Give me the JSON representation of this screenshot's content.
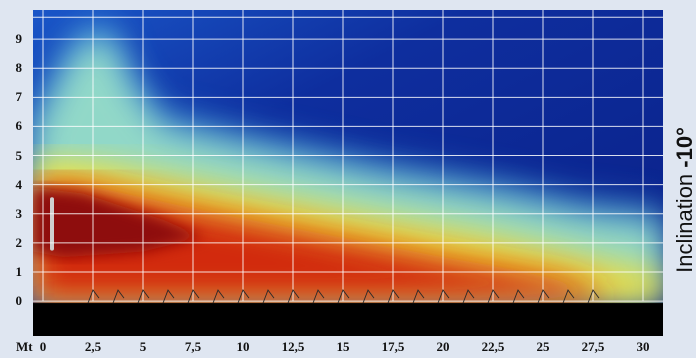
{
  "chart_data": {
    "type": "heatmap",
    "xlabel": "Mt",
    "x_ticks": [
      "0",
      "2,5",
      "5",
      "7,5",
      "10",
      "12,5",
      "15",
      "17,5",
      "20",
      "22,5",
      "25",
      "27,5",
      "30"
    ],
    "y_ticks": [
      "0",
      "1",
      "2",
      "3",
      "4",
      "5",
      "6",
      "7",
      "8",
      "9"
    ],
    "xlim": [
      -0.5,
      31
    ],
    "ylim": [
      -1.2,
      10
    ],
    "grid": true,
    "colorscale": [
      "#0a1f86",
      "#1a56c8",
      "#3fa6e8",
      "#8ee0e0",
      "#d8f070",
      "#f4e030",
      "#f08a1a",
      "#d8280e",
      "#8e0c08"
    ],
    "regions": [
      {
        "name": "high",
        "color": "#d22a10",
        "outline": [
          [
            -0.5,
            1.5
          ],
          [
            -0.5,
            4.1
          ],
          [
            2,
            4.0
          ],
          [
            8,
            3.1
          ],
          [
            14,
            2.3
          ],
          [
            20,
            1.5
          ],
          [
            26,
            0.8
          ],
          [
            28,
            0.3
          ],
          [
            28,
            0
          ],
          [
            -0.5,
            0
          ]
        ]
      },
      {
        "name": "peak",
        "color": "#8e0c08",
        "outline": [
          [
            -0.5,
            1.7
          ],
          [
            -0.5,
            3.9
          ],
          [
            2,
            3.7
          ],
          [
            6,
            2.8
          ],
          [
            8,
            2.2
          ],
          [
            5,
            1.7
          ],
          [
            1,
            1.5
          ]
        ]
      },
      {
        "name": "moderate",
        "color": "#f3e23a",
        "outline": [
          [
            -0.5,
            0
          ],
          [
            -0.5,
            4.9
          ],
          [
            3,
            4.7
          ],
          [
            9,
            3.9
          ],
          [
            16,
            3.0
          ],
          [
            22,
            2.3
          ],
          [
            26,
            1.7
          ],
          [
            29,
            1.2
          ],
          [
            31,
            1.0
          ],
          [
            31,
            0
          ]
        ]
      },
      {
        "name": "plume",
        "color": "#9de3c8",
        "outline": [
          [
            -0.5,
            0
          ],
          [
            -0.5,
            5.8
          ],
          [
            0.5,
            7.2
          ],
          [
            1.5,
            8.5
          ],
          [
            2.5,
            9.1
          ],
          [
            3.5,
            8.9
          ],
          [
            4.5,
            7.3
          ],
          [
            6,
            6.0
          ],
          [
            11,
            5.2
          ],
          [
            17,
            4.3
          ],
          [
            23,
            3.6
          ],
          [
            27,
            3.0
          ],
          [
            31,
            2.7
          ],
          [
            31,
            0
          ]
        ]
      }
    ],
    "ground_color": "#000000"
  },
  "side_caption": {
    "text": "Inclination ",
    "value": "-10°"
  }
}
